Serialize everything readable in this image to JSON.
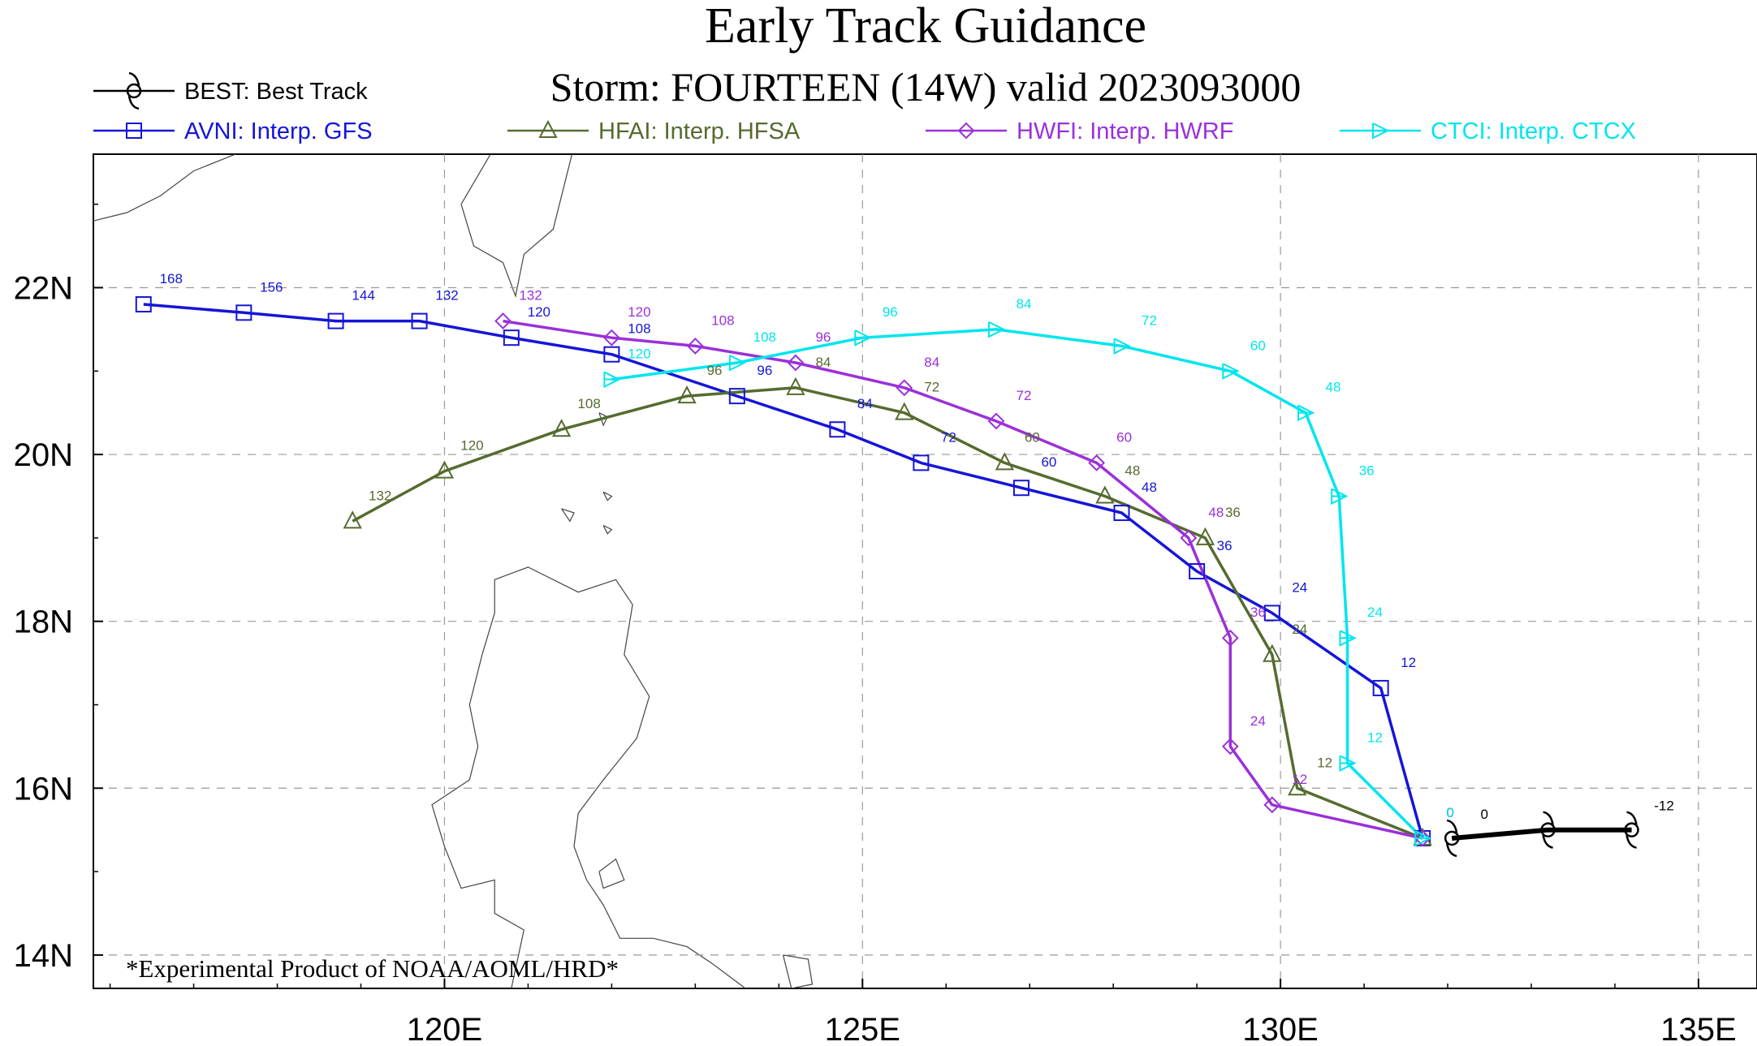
{
  "title": "Early Track Guidance",
  "subtitle": "Storm: FOURTEEN (14W) valid 2023093000",
  "footnote": "*Experimental Product of NOAA/AOML/HRD*",
  "map": {
    "lon_range": [
      115.8,
      135.7
    ],
    "lat_range": [
      13.6,
      23.6
    ],
    "x_ticks": [
      {
        "value": 120,
        "label": "120E"
      },
      {
        "value": 125,
        "label": "125E"
      },
      {
        "value": 130,
        "label": "130E"
      },
      {
        "value": 135,
        "label": "135E"
      }
    ],
    "y_ticks": [
      {
        "value": 22,
        "label": "22N"
      },
      {
        "value": 20,
        "label": "20N"
      },
      {
        "value": 18,
        "label": "18N"
      },
      {
        "value": 16,
        "label": "16N"
      },
      {
        "value": 14,
        "label": "14N"
      }
    ],
    "grid": true
  },
  "chart_data": {
    "type": "line",
    "series": [
      {
        "id": "BEST",
        "name": "BEST: Best Track",
        "color": "#000000",
        "marker": "storm",
        "points": [
          {
            "lon": 134.2,
            "lat": 15.5,
            "tau": "-12"
          },
          {
            "lon": 133.2,
            "lat": 15.5,
            "tau": ""
          },
          {
            "lon": 132.05,
            "lat": 15.4,
            "tau": "0"
          }
        ]
      },
      {
        "id": "AVNI",
        "name": "AVNI: Interp. GFS",
        "color": "#1515d8",
        "marker": "square",
        "points": [
          {
            "lon": 131.7,
            "lat": 15.4,
            "tau": "0"
          },
          {
            "lon": 131.2,
            "lat": 17.2,
            "tau": "12"
          },
          {
            "lon": 129.9,
            "lat": 18.1,
            "tau": "24"
          },
          {
            "lon": 129.0,
            "lat": 18.6,
            "tau": "36"
          },
          {
            "lon": 128.1,
            "lat": 19.3,
            "tau": "48"
          },
          {
            "lon": 126.9,
            "lat": 19.6,
            "tau": "60"
          },
          {
            "lon": 125.7,
            "lat": 19.9,
            "tau": "72"
          },
          {
            "lon": 124.7,
            "lat": 20.3,
            "tau": "84"
          },
          {
            "lon": 123.5,
            "lat": 20.7,
            "tau": "96"
          },
          {
            "lon": 122.0,
            "lat": 21.2,
            "tau": "108"
          },
          {
            "lon": 120.8,
            "lat": 21.4,
            "tau": "120"
          },
          {
            "lon": 119.7,
            "lat": 21.6,
            "tau": "132"
          },
          {
            "lon": 118.7,
            "lat": 21.6,
            "tau": "144"
          },
          {
            "lon": 117.6,
            "lat": 21.7,
            "tau": "156"
          },
          {
            "lon": 116.4,
            "lat": 21.8,
            "tau": "168"
          }
        ]
      },
      {
        "id": "HFAI",
        "name": "HFAI: Interp. HFSA",
        "color": "#556b2f",
        "marker": "triangle",
        "points": [
          {
            "lon": 131.7,
            "lat": 15.4,
            "tau": "0"
          },
          {
            "lon": 130.2,
            "lat": 16.0,
            "tau": "12"
          },
          {
            "lon": 129.9,
            "lat": 17.6,
            "tau": "24"
          },
          {
            "lon": 129.1,
            "lat": 19.0,
            "tau": "36"
          },
          {
            "lon": 127.9,
            "lat": 19.5,
            "tau": "48"
          },
          {
            "lon": 126.7,
            "lat": 19.9,
            "tau": "60"
          },
          {
            "lon": 125.5,
            "lat": 20.5,
            "tau": "72"
          },
          {
            "lon": 124.2,
            "lat": 20.8,
            "tau": "84"
          },
          {
            "lon": 122.9,
            "lat": 20.7,
            "tau": "96"
          },
          {
            "lon": 121.4,
            "lat": 20.3,
            "tau": "108"
          },
          {
            "lon": 120.0,
            "lat": 19.8,
            "tau": "120"
          },
          {
            "lon": 118.9,
            "lat": 19.2,
            "tau": "132"
          }
        ]
      },
      {
        "id": "HWFI",
        "name": "HWFI: Interp. HWRF",
        "color": "#9b30d9",
        "marker": "diamond",
        "points": [
          {
            "lon": 131.7,
            "lat": 15.4,
            "tau": "0"
          },
          {
            "lon": 129.9,
            "lat": 15.8,
            "tau": "12"
          },
          {
            "lon": 129.4,
            "lat": 16.5,
            "tau": "24"
          },
          {
            "lon": 129.4,
            "lat": 17.8,
            "tau": "36"
          },
          {
            "lon": 128.9,
            "lat": 19.0,
            "tau": "48"
          },
          {
            "lon": 127.8,
            "lat": 19.9,
            "tau": "60"
          },
          {
            "lon": 126.6,
            "lat": 20.4,
            "tau": "72"
          },
          {
            "lon": 125.5,
            "lat": 20.8,
            "tau": "84"
          },
          {
            "lon": 124.2,
            "lat": 21.1,
            "tau": "96"
          },
          {
            "lon": 123.0,
            "lat": 21.3,
            "tau": "108"
          },
          {
            "lon": 122.0,
            "lat": 21.4,
            "tau": "120"
          },
          {
            "lon": 120.7,
            "lat": 21.6,
            "tau": "132"
          }
        ]
      },
      {
        "id": "CTCI",
        "name": "CTCI: Interp. CTCX",
        "color": "#00e5ee",
        "marker": "pennant",
        "points": [
          {
            "lon": 131.7,
            "lat": 15.4,
            "tau": "0"
          },
          {
            "lon": 130.8,
            "lat": 16.3,
            "tau": "12"
          },
          {
            "lon": 130.8,
            "lat": 17.8,
            "tau": "24"
          },
          {
            "lon": 130.7,
            "lat": 19.5,
            "tau": "36"
          },
          {
            "lon": 130.3,
            "lat": 20.5,
            "tau": "48"
          },
          {
            "lon": 129.4,
            "lat": 21.0,
            "tau": "60"
          },
          {
            "lon": 128.1,
            "lat": 21.3,
            "tau": "72"
          },
          {
            "lon": 126.6,
            "lat": 21.5,
            "tau": "84"
          },
          {
            "lon": 125.0,
            "lat": 21.4,
            "tau": "96"
          },
          {
            "lon": 123.5,
            "lat": 21.1,
            "tau": "108"
          },
          {
            "lon": 122.0,
            "lat": 20.9,
            "tau": "120"
          }
        ]
      }
    ]
  },
  "coastlines": [
    {
      "name": "taiwan",
      "points": [
        [
          120.65,
          24.1
        ],
        [
          120.55,
          23.6
        ],
        [
          120.2,
          23.0
        ],
        [
          120.35,
          22.5
        ],
        [
          120.7,
          22.3
        ],
        [
          120.85,
          21.9
        ],
        [
          120.95,
          22.4
        ],
        [
          121.3,
          22.7
        ],
        [
          121.45,
          23.3
        ],
        [
          121.6,
          23.9
        ],
        [
          121.85,
          24.5
        ],
        [
          121.95,
          25.0
        ],
        [
          121.6,
          25.3
        ],
        [
          121.0,
          25.0
        ],
        [
          120.65,
          24.1
        ]
      ]
    },
    {
      "name": "china-coast",
      "points": [
        [
          115.8,
          22.8
        ],
        [
          116.2,
          22.9
        ],
        [
          116.6,
          23.1
        ],
        [
          117.0,
          23.4
        ],
        [
          117.5,
          23.6
        ],
        [
          117.8,
          23.8
        ]
      ]
    },
    {
      "name": "luzon",
      "points": [
        [
          120.6,
          18.5
        ],
        [
          121.0,
          18.65
        ],
        [
          121.6,
          18.35
        ],
        [
          122.05,
          18.5
        ],
        [
          122.25,
          18.2
        ],
        [
          122.15,
          17.6
        ],
        [
          122.45,
          17.1
        ],
        [
          122.3,
          16.6
        ],
        [
          121.9,
          16.1
        ],
        [
          121.6,
          15.7
        ],
        [
          121.55,
          15.3
        ],
        [
          121.7,
          14.9
        ],
        [
          121.9,
          14.6
        ],
        [
          122.1,
          14.2
        ],
        [
          122.5,
          14.2
        ],
        [
          122.9,
          14.1
        ],
        [
          123.2,
          13.9
        ],
        [
          123.4,
          13.75
        ],
        [
          123.6,
          13.6
        ],
        [
          120.8,
          13.6
        ],
        [
          120.95,
          14.3
        ],
        [
          120.6,
          14.5
        ],
        [
          120.6,
          14.9
        ],
        [
          120.2,
          14.8
        ],
        [
          120.0,
          15.3
        ],
        [
          119.85,
          15.8
        ],
        [
          120.3,
          16.1
        ],
        [
          120.4,
          16.5
        ],
        [
          120.3,
          17.0
        ],
        [
          120.45,
          17.6
        ],
        [
          120.6,
          18.1
        ],
        [
          120.6,
          18.5
        ]
      ]
    },
    {
      "name": "polillo",
      "points": [
        [
          121.85,
          15.0
        ],
        [
          122.05,
          15.15
        ],
        [
          122.15,
          14.9
        ],
        [
          121.9,
          14.8
        ],
        [
          121.85,
          15.0
        ]
      ]
    },
    {
      "name": "catanduanes",
      "points": [
        [
          124.05,
          14.0
        ],
        [
          124.35,
          13.95
        ],
        [
          124.4,
          13.65
        ],
        [
          124.15,
          13.6
        ],
        [
          124.05,
          14.0
        ]
      ]
    },
    {
      "name": "calayan",
      "points": [
        [
          121.4,
          19.35
        ],
        [
          121.55,
          19.3
        ],
        [
          121.5,
          19.2
        ],
        [
          121.4,
          19.35
        ]
      ]
    },
    {
      "name": "babuyan",
      "points": [
        [
          121.9,
          19.55
        ],
        [
          122.0,
          19.5
        ],
        [
          121.95,
          19.45
        ],
        [
          121.9,
          19.55
        ]
      ]
    },
    {
      "name": "batanes",
      "points": [
        [
          121.85,
          20.5
        ],
        [
          121.95,
          20.45
        ],
        [
          121.9,
          20.35
        ],
        [
          121.85,
          20.5
        ]
      ]
    },
    {
      "name": "babuyan-claro",
      "points": [
        [
          121.9,
          19.15
        ],
        [
          122.0,
          19.1
        ],
        [
          121.95,
          19.05
        ],
        [
          121.9,
          19.15
        ]
      ]
    }
  ]
}
